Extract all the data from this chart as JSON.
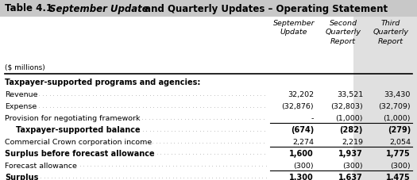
{
  "title_prefix": "Table 4.1",
  "title_italic": " September Update",
  "title_suffix": " and Quarterly Updates – Operating Statement",
  "subtitle": "($ millions)",
  "rows": [
    {
      "label": "Taxpayer-supported programs and agencies:",
      "values": [
        "",
        "",
        ""
      ],
      "style": "bold_section"
    },
    {
      "label": "Revenue",
      "values": [
        "32,202",
        "33,521",
        "33,430"
      ],
      "style": "normal",
      "dots": true
    },
    {
      "label": "Expense",
      "values": [
        "(32,876)",
        "(32,803)",
        "(32,709)"
      ],
      "style": "normal",
      "dots": true
    },
    {
      "label": "Provision for negotiating framework",
      "values": [
        "-",
        "(1,000)",
        "(1,000)"
      ],
      "style": "normal",
      "dots": true
    },
    {
      "label": "Taxpayer-supported balance",
      "values": [
        "(674)",
        "(282)",
        "(279)"
      ],
      "style": "bold_indent",
      "dots": true,
      "top_border": true
    },
    {
      "label": "Commercial Crown corporation income",
      "values": [
        "2,274",
        "2,219",
        "2,054"
      ],
      "style": "normal",
      "dots": true
    },
    {
      "label": "Surplus before forecast allowance",
      "values": [
        "1,600",
        "1,937",
        "1,775"
      ],
      "style": "bold",
      "dots": true,
      "top_border": true
    },
    {
      "label": "Forecast allowance",
      "values": [
        "(300)",
        "(300)",
        "(300)"
      ],
      "style": "normal",
      "dots": true
    },
    {
      "label": "Surplus",
      "values": [
        "1,300",
        "1,637",
        "1,475"
      ],
      "style": "bold",
      "dots": true,
      "top_border": true,
      "double_bottom": true
    }
  ],
  "col1_header": "September\nUpdate",
  "col2_header": "Second\nQuarterly\nReport",
  "col3_header": "Third\nQuarterly\nReport",
  "bg_color": "#FFFFFF",
  "col3_bg": "#E8E8E8",
  "title_bg": "#D0D0D0"
}
